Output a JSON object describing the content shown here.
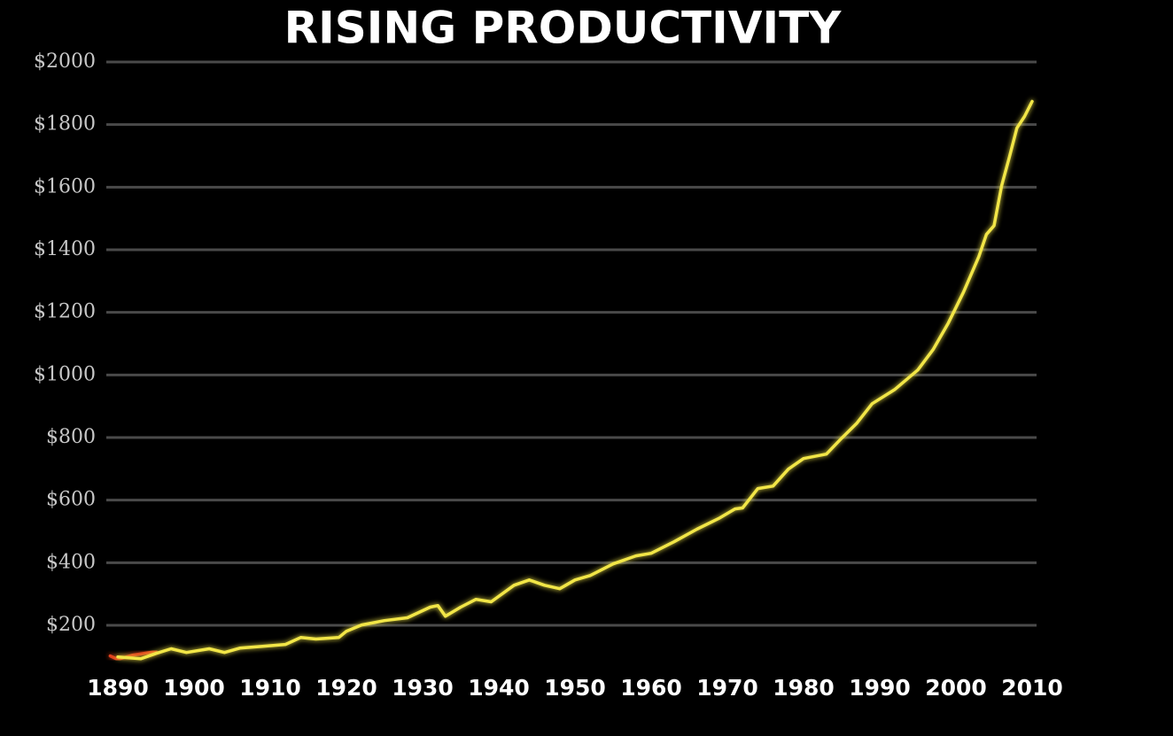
{
  "chart_data": {
    "type": "line",
    "title": "RISING PRODUCTIVITY",
    "series": [
      {
        "color": "#e0401c",
        "x": [
          1889,
          1890,
          1892,
          1895
        ],
        "values": [
          102,
          91,
          105,
          116
        ]
      },
      {
        "color": "#f2e646",
        "x": [
          1890,
          1893,
          1895,
          1897,
          1899,
          1902,
          1904,
          1906,
          1909,
          1912,
          1914,
          1916,
          1919,
          1920,
          1922,
          1925,
          1928,
          1931,
          1932,
          1933,
          1935,
          1937,
          1939,
          1942,
          1944,
          1946,
          1948,
          1950,
          1952,
          1955,
          1958,
          1960,
          1963,
          1966,
          1969,
          1971,
          1972,
          1974,
          1976,
          1978,
          1980,
          1983,
          1985,
          1987,
          1989,
          1992,
          1995,
          1997,
          1999,
          2001,
          2003,
          2004,
          2005,
          2006,
          2007,
          2008,
          2009,
          2010
        ],
        "values": [
          99,
          93,
          110,
          125,
          113,
          125,
          113,
          127,
          133,
          139,
          161,
          156,
          161,
          181,
          201,
          215,
          224,
          258,
          263,
          229,
          258,
          283,
          275,
          328,
          345,
          328,
          317,
          345,
          359,
          396,
          422,
          430,
          467,
          507,
          543,
          572,
          575,
          637,
          645,
          699,
          733,
          747,
          798,
          846,
          908,
          954,
          1016,
          1081,
          1166,
          1265,
          1378,
          1449,
          1477,
          1605,
          1695,
          1789,
          1826,
          1874
        ]
      }
    ],
    "xlim": [
      1888,
      2012
    ],
    "xticks": [
      1890,
      1900,
      1910,
      1920,
      1930,
      1940,
      1950,
      1960,
      1970,
      1980,
      1990,
      2000,
      2010
    ],
    "ylim": [
      50,
      2000
    ],
    "yticks": [
      {
        "value": 200,
        "label": "$200"
      },
      {
        "value": 400,
        "label": "$400"
      },
      {
        "value": 600,
        "label": "$600"
      },
      {
        "value": 800,
        "label": "$800"
      },
      {
        "value": 1000,
        "label": "$1000"
      },
      {
        "value": 1200,
        "label": "$1200"
      },
      {
        "value": 1400,
        "label": "$1400"
      },
      {
        "value": 1600,
        "label": "$1600"
      },
      {
        "value": 1800,
        "label": "$1800"
      },
      {
        "value": 2000,
        "label": "$2000"
      }
    ],
    "grid": true
  }
}
